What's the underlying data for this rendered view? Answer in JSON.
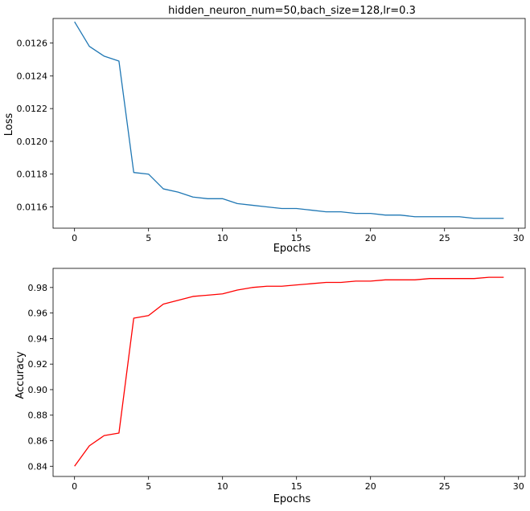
{
  "chart_data": [
    {
      "type": "line",
      "title": "hidden_neuron_num=50,bach_size=128,lr=0.3",
      "xlabel": "Epochs",
      "ylabel": "Loss",
      "xlim": [
        -1.45,
        30.45
      ],
      "ylim": [
        0.01147,
        0.01275
      ],
      "xticks": [
        0,
        5,
        10,
        15,
        20,
        25,
        30
      ],
      "yticks": [
        0.0116,
        0.0118,
        0.012,
        0.0122,
        0.0124,
        0.0126
      ],
      "ytick_labels": [
        "0.0116",
        "0.0118",
        "0.0120",
        "0.0122",
        "0.0124",
        "0.0126"
      ],
      "grid": false,
      "series": [
        {
          "color": "#1f77b4",
          "x": [
            0,
            1,
            2,
            3,
            4,
            5,
            6,
            7,
            8,
            9,
            10,
            11,
            12,
            13,
            14,
            15,
            16,
            17,
            18,
            19,
            20,
            21,
            22,
            23,
            24,
            25,
            26,
            27,
            28,
            29
          ],
          "values": [
            0.01273,
            0.01258,
            0.01252,
            0.01249,
            0.01181,
            0.0118,
            0.01171,
            0.01169,
            0.01166,
            0.01165,
            0.01165,
            0.01162,
            0.01161,
            0.0116,
            0.01159,
            0.01159,
            0.01158,
            0.01157,
            0.01157,
            0.01156,
            0.01156,
            0.01155,
            0.01155,
            0.01154,
            0.01154,
            0.01154,
            0.01154,
            0.01153,
            0.01153,
            0.01153
          ]
        }
      ]
    },
    {
      "type": "line",
      "title": "",
      "xlabel": "Epochs",
      "ylabel": "Accuracy",
      "xlim": [
        -1.45,
        30.45
      ],
      "ylim": [
        0.832,
        0.995
      ],
      "xticks": [
        0,
        5,
        10,
        15,
        20,
        25,
        30
      ],
      "yticks": [
        0.84,
        0.86,
        0.88,
        0.9,
        0.92,
        0.94,
        0.96,
        0.98
      ],
      "ytick_labels": [
        "0.84",
        "0.86",
        "0.88",
        "0.90",
        "0.92",
        "0.94",
        "0.96",
        "0.98"
      ],
      "grid": false,
      "series": [
        {
          "color": "#ff0000",
          "x": [
            0,
            1,
            2,
            3,
            4,
            5,
            6,
            7,
            8,
            9,
            10,
            11,
            12,
            13,
            14,
            15,
            16,
            17,
            18,
            19,
            20,
            21,
            22,
            23,
            24,
            25,
            26,
            27,
            28,
            29
          ],
          "values": [
            0.84,
            0.856,
            0.864,
            0.866,
            0.956,
            0.958,
            0.967,
            0.97,
            0.973,
            0.974,
            0.975,
            0.978,
            0.98,
            0.981,
            0.981,
            0.982,
            0.983,
            0.984,
            0.984,
            0.985,
            0.985,
            0.986,
            0.986,
            0.986,
            0.987,
            0.987,
            0.987,
            0.987,
            0.988,
            0.988
          ]
        }
      ]
    }
  ]
}
